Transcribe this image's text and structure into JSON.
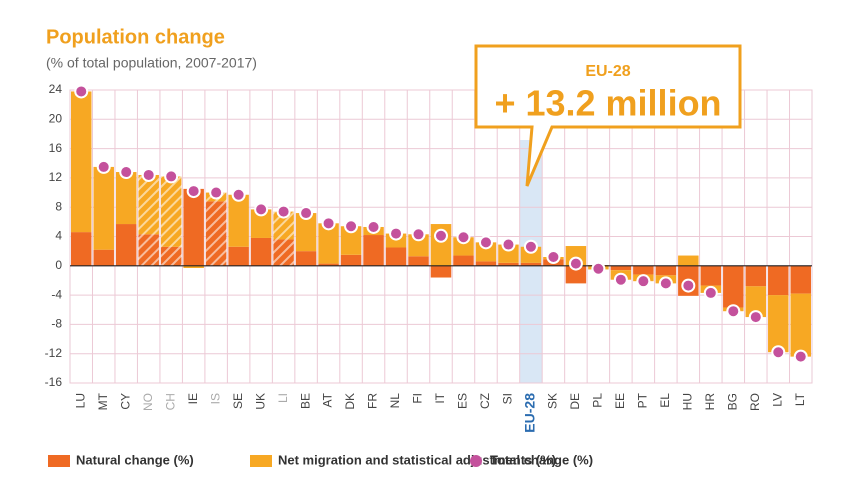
{
  "chart_data": {
    "type": "bar",
    "stacked": true,
    "title": "Population change",
    "subtitle": "(% of total population, 2007-2017)",
    "annotation": {
      "label": "EU-28",
      "text": "+ 13.2 million"
    },
    "highlight_category": "EU-28",
    "hatched_categories": [
      "NO",
      "CH",
      "IS",
      "LI"
    ],
    "categories": [
      "LU",
      "MT",
      "CY",
      "NO",
      "CH",
      "IE",
      "IS",
      "SE",
      "UK",
      "LI",
      "BE",
      "AT",
      "DK",
      "FR",
      "NL",
      "FI",
      "IT",
      "ES",
      "CZ",
      "SI",
      "EU-28",
      "SK",
      "DE",
      "PL",
      "EE",
      "PT",
      "EL",
      "HU",
      "HR",
      "BG",
      "RO",
      "LV",
      "LT"
    ],
    "series": [
      {
        "name": "Natural change (%)",
        "color": "#ef6a23",
        "values": [
          4.6,
          2.2,
          5.7,
          4.3,
          2.6,
          10.5,
          8.8,
          2.6,
          3.8,
          3.6,
          2.0,
          0.3,
          1.5,
          4.2,
          2.5,
          1.3,
          -1.6,
          1.4,
          0.6,
          0.4,
          0.4,
          0.9,
          -2.4,
          0.1,
          -0.6,
          -1.2,
          -1.3,
          -4.1,
          -2.7,
          -5.7,
          -2.8,
          -4.0,
          -3.8
        ]
      },
      {
        "name": "Net migration and statistical adjustments (%)",
        "color": "#f7a823",
        "values": [
          19.2,
          11.3,
          7.1,
          8.1,
          9.6,
          -0.3,
          1.2,
          7.1,
          3.9,
          3.8,
          5.2,
          5.5,
          3.9,
          1.1,
          1.9,
          3.0,
          5.7,
          2.5,
          2.6,
          2.5,
          2.2,
          0.3,
          2.7,
          -0.5,
          -1.3,
          -0.9,
          -1.1,
          1.4,
          -1.0,
          -0.5,
          -4.2,
          -7.8,
          -8.6
        ]
      },
      {
        "name": "Total change (%)",
        "color": "#c4519c",
        "type": "scatter",
        "values": [
          23.8,
          13.5,
          12.8,
          12.4,
          12.2,
          10.2,
          10.0,
          9.7,
          7.7,
          7.4,
          7.2,
          5.8,
          5.4,
          5.3,
          4.4,
          4.3,
          4.1,
          3.9,
          3.2,
          2.9,
          2.6,
          1.2,
          0.3,
          -0.4,
          -1.9,
          -2.1,
          -2.4,
          -2.7,
          -3.7,
          -6.2,
          -7.0,
          -11.8,
          -12.4
        ]
      }
    ],
    "ylim": [
      -16,
      24
    ],
    "yticks": [
      -16,
      -12,
      -8,
      -4,
      0,
      4,
      8,
      12,
      16,
      20,
      24
    ],
    "grid": true
  }
}
